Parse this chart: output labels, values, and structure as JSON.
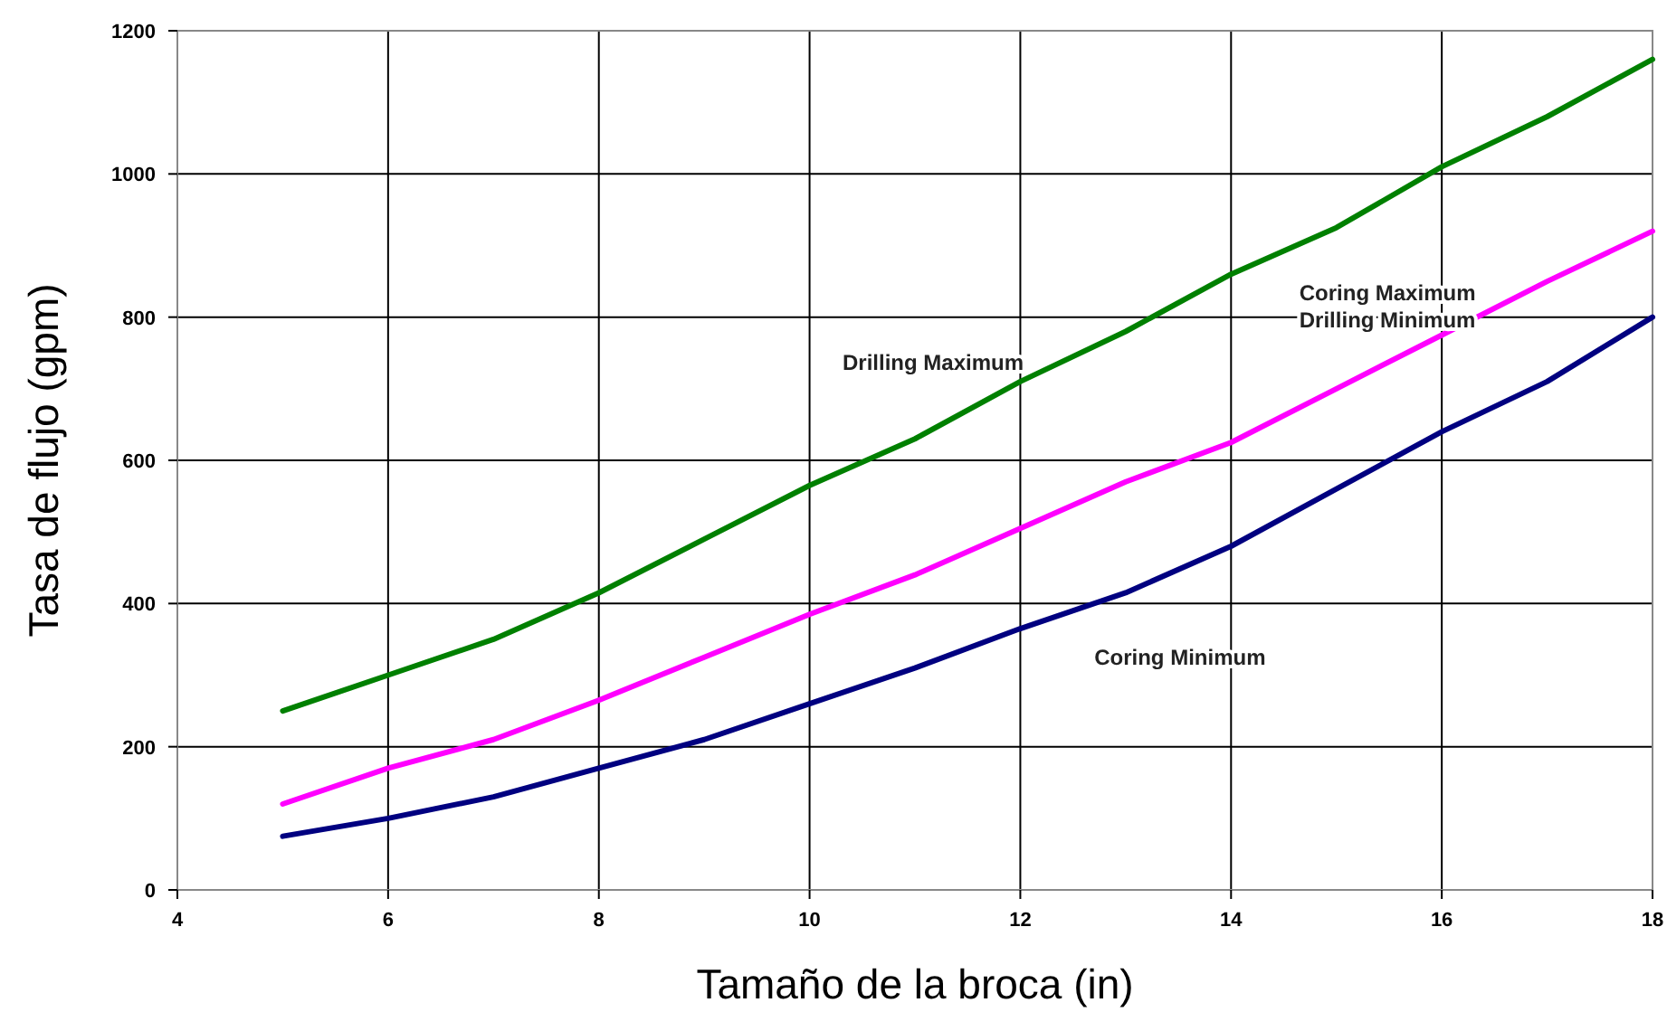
{
  "chart_data": {
    "type": "line",
    "xlabel": "Tamaño de la broca (in)",
    "ylabel": "Tasa de flujo (gpm)",
    "x": [
      5,
      6,
      7,
      8,
      9,
      10,
      11,
      12,
      13,
      14,
      15,
      16,
      17,
      18
    ],
    "xlim": [
      4,
      18
    ],
    "xticks": [
      4,
      6,
      8,
      10,
      12,
      14,
      16,
      18
    ],
    "ylim": [
      0,
      1200
    ],
    "yticks": [
      0,
      200,
      400,
      600,
      800,
      1000,
      1200
    ],
    "grid": true,
    "legend": false,
    "marker": "none",
    "line_style": "solid",
    "series": [
      {
        "name": "Drilling Maximum",
        "color": "#008000",
        "values": [
          250,
          300,
          350,
          415,
          490,
          565,
          630,
          710,
          780,
          860,
          925,
          1010,
          1080,
          1160
        ]
      },
      {
        "name": "Coring Maximum Drilling Minimum",
        "color": "#ff00ff",
        "values": [
          120,
          170,
          210,
          265,
          325,
          385,
          440,
          505,
          570,
          625,
          700,
          775,
          850,
          920
        ]
      },
      {
        "name": "Coring Minimum",
        "color": "#000080",
        "values": [
          75,
          100,
          130,
          170,
          210,
          260,
          310,
          365,
          415,
          480,
          560,
          640,
          710,
          800
        ]
      }
    ]
  }
}
